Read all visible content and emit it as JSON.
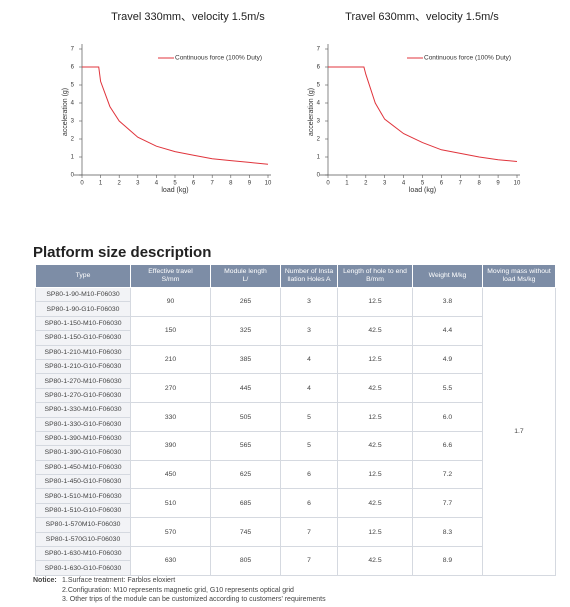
{
  "chart_data": [
    {
      "type": "line",
      "title": "Travel 330mm、velocity 1.5m/s",
      "x_label": "load (kg)",
      "y_label": "acceleration (g)",
      "xlim": [
        0,
        10
      ],
      "ylim": [
        0,
        7
      ],
      "xticks": [
        0,
        1,
        2,
        3,
        4,
        5,
        6,
        7,
        8,
        9,
        10
      ],
      "yticks": [
        0,
        1,
        2,
        3,
        4,
        5,
        6,
        7
      ],
      "legend": "upper right",
      "series": [
        {
          "name": "Continuous force (100% Duty)",
          "color": "#e0343c",
          "x": [
            0,
            0.9,
            1,
            1.5,
            2,
            3,
            4,
            5,
            6,
            7,
            8,
            9,
            10
          ],
          "values": [
            6,
            6,
            5.2,
            3.8,
            3.0,
            2.1,
            1.6,
            1.3,
            1.1,
            0.9,
            0.8,
            0.7,
            0.6
          ]
        }
      ]
    },
    {
      "type": "line",
      "title": "Travel 630mm、velocity 1.5m/s",
      "x_label": "load (kg)",
      "y_label": "acceleration (g)",
      "xlim": [
        0,
        10
      ],
      "ylim": [
        0,
        7
      ],
      "xticks": [
        0,
        1,
        2,
        3,
        4,
        5,
        6,
        7,
        8,
        9,
        10
      ],
      "yticks": [
        0,
        1,
        2,
        3,
        4,
        5,
        6,
        7
      ],
      "legend": "upper right",
      "series": [
        {
          "name": "Continuous force (100% Duty)",
          "color": "#e0343c",
          "x": [
            0,
            1.9,
            2,
            2.5,
            3,
            4,
            5,
            6,
            7,
            8,
            9,
            10
          ],
          "values": [
            6,
            6,
            5.6,
            4.0,
            3.1,
            2.3,
            1.8,
            1.4,
            1.2,
            1.0,
            0.85,
            0.75
          ]
        }
      ]
    }
  ],
  "section_title": "Platform size description",
  "table": {
    "headers": [
      "Type",
      "Effective travel\nS/mm",
      "Module length\nL/",
      "Number of Insta\nllation Holes A",
      "Length of hole to end\nB/mm",
      "Weight M/kg",
      "Moving mass without\nload Ms/kg"
    ],
    "groups": [
      {
        "types": [
          "SP80-1-90-M10-F06030",
          "SP80-1-90-G10-F06030"
        ],
        "cells": [
          "90",
          "265",
          "3",
          "12.5",
          "3.8"
        ]
      },
      {
        "types": [
          "SP80-1-150-M10-F06030",
          "SP80-1-150-G10-F06030"
        ],
        "cells": [
          "150",
          "325",
          "3",
          "42.5",
          "4.4"
        ]
      },
      {
        "types": [
          "SP80-1-210-M10-F06030",
          "SP80-1-210-G10-F06030"
        ],
        "cells": [
          "210",
          "385",
          "4",
          "12.5",
          "4.9"
        ]
      },
      {
        "types": [
          "SP80-1-270-M10-F06030",
          "SP80-1-270-G10-F06030"
        ],
        "cells": [
          "270",
          "445",
          "4",
          "42.5",
          "5.5"
        ]
      },
      {
        "types": [
          "SP80-1-330-M10-F06030",
          "SP80-1-330-G10-F06030"
        ],
        "cells": [
          "330",
          "505",
          "5",
          "12.5",
          "6.0"
        ]
      },
      {
        "types": [
          "SP80-1-390-M10-F06030",
          "SP80-1-390-G10-F06030"
        ],
        "cells": [
          "390",
          "565",
          "5",
          "42.5",
          "6.6"
        ]
      },
      {
        "types": [
          "SP80-1-450-M10-F06030",
          "SP80-1-450-G10-F06030"
        ],
        "cells": [
          "450",
          "625",
          "6",
          "12.5",
          "7.2"
        ]
      },
      {
        "types": [
          "SP80-1-510-M10-F06030",
          "SP80-1-510-G10-F06030"
        ],
        "cells": [
          "510",
          "685",
          "6",
          "42.5",
          "7.7"
        ]
      },
      {
        "types": [
          "SP80-1-570M10-F06030",
          "SP80-1-570G10-F06030"
        ],
        "cells": [
          "570",
          "745",
          "7",
          "12.5",
          "8.3"
        ]
      },
      {
        "types": [
          "SP80-1-630-M10-F06030",
          "SP80-1-630-G10-F06030"
        ],
        "cells": [
          "630",
          "805",
          "7",
          "42.5",
          "8.9"
        ]
      }
    ],
    "moving_mass": "1.7"
  },
  "notice": {
    "label": "Notice:",
    "items": [
      "1.Surface treatment: Farblos eloxiert",
      "2.Configuration: M10 represents magnetic grid, G10 represents optical grid",
      "3. Other trips of the module can be customized according to customers' requirements"
    ]
  }
}
